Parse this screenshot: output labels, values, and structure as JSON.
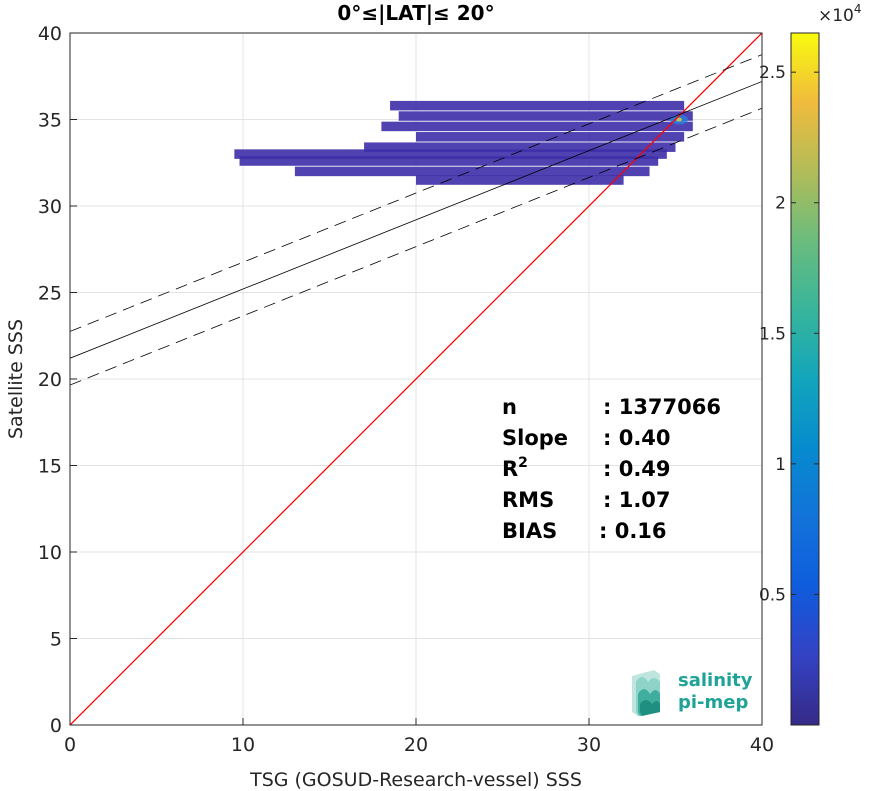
{
  "chart_data": {
    "type": "heatmap",
    "title": "0°≤|LAT|≤ 20°",
    "xlabel": "TSG (GOSUD-Research-vessel) SSS",
    "ylabel": "Satellite SSS",
    "xlim": [
      0,
      40
    ],
    "ylim": [
      0,
      40
    ],
    "xticks": [
      "0",
      "10",
      "20",
      "30",
      "40"
    ],
    "yticks": [
      "0",
      "5",
      "10",
      "15",
      "20",
      "25",
      "30",
      "35",
      "40"
    ],
    "grid": true,
    "colorbar": {
      "range": [
        0,
        26500
      ],
      "ticks": [
        "0.5",
        "1",
        "1.5",
        "2",
        "2.5"
      ],
      "tick_values": [
        5000,
        10000,
        15000,
        20000,
        25000
      ],
      "exponent_label": "×10",
      "exponent_power": "4",
      "colormap": "parula"
    },
    "lines": [
      {
        "role": "identity",
        "color": "#ff0000",
        "slope": 1.0,
        "intercept": 0.0
      },
      {
        "role": "regression",
        "color": "#000000",
        "slope": 0.4,
        "intercept": 21.2
      },
      {
        "role": "regression-upper",
        "color": "#000000",
        "dash": true,
        "slope": 0.4,
        "intercept": 22.75
      },
      {
        "role": "regression-lower",
        "color": "#000000",
        "dash": true,
        "slope": 0.4,
        "intercept": 19.65
      }
    ],
    "density_bands": [
      {
        "y": 35.8,
        "x_start": 18.5,
        "x_end": 35.5
      },
      {
        "y": 35.2,
        "x_start": 19,
        "x_end": 36
      },
      {
        "y": 34.6,
        "x_start": 18,
        "x_end": 36
      },
      {
        "y": 34.0,
        "x_start": 20,
        "x_end": 35.5
      },
      {
        "y": 33.4,
        "x_start": 17,
        "x_end": 35
      },
      {
        "y": 33.0,
        "x_start": 9.5,
        "x_end": 34.5
      },
      {
        "y": 32.6,
        "x_start": 9.8,
        "x_end": 34
      },
      {
        "y": 32.0,
        "x_start": 13,
        "x_end": 33.5
      },
      {
        "y": 31.5,
        "x_start": 20,
        "x_end": 32
      }
    ],
    "stats": [
      {
        "label": "n",
        "value": ": 1377066"
      },
      {
        "label": "Slope",
        "value": ": 0.40"
      },
      {
        "label": "R",
        "sup": "2",
        "value": ": 0.49"
      },
      {
        "label": "RMS",
        "value": ": 1.07"
      },
      {
        "label": "BIAS",
        "value": ": 0.16"
      }
    ]
  },
  "logo": {
    "line1": "salinity",
    "line2": "pi-mep",
    "color": "#1fa397"
  }
}
